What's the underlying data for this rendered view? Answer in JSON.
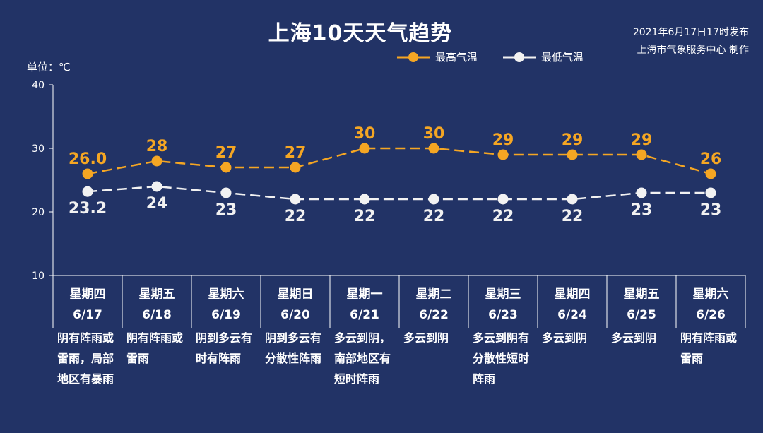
{
  "header": {
    "title": "上海10天天气趋势",
    "publish_time": "2021年6月17日17时发布",
    "publisher": "上海市气象服务中心 制作"
  },
  "unit_label": "单位：℃",
  "colors": {
    "background": "#223366",
    "high": "#f5a623",
    "low": "#f2f2f2"
  },
  "chart_data": {
    "type": "line",
    "ylim": [
      10,
      40
    ],
    "yticks": [
      10,
      20,
      30,
      40
    ],
    "legend_position": "top-center",
    "series": [
      {
        "name": "最高气温",
        "color": "#f5a623",
        "values": [
          26.0,
          28,
          27,
          27,
          30,
          30,
          29,
          29,
          29,
          26
        ],
        "labels": [
          "26.0",
          "28",
          "27",
          "27",
          "30",
          "30",
          "29",
          "29",
          "29",
          "26"
        ]
      },
      {
        "name": "最低气温",
        "color": "#f2f2f2",
        "values": [
          23.2,
          24,
          23,
          22,
          22,
          22,
          22,
          22,
          23,
          23
        ],
        "labels": [
          "23.2",
          "24",
          "23",
          "22",
          "22",
          "22",
          "22",
          "22",
          "23",
          "23"
        ]
      }
    ],
    "days": [
      {
        "weekday": "星期四",
        "date": "6/17",
        "desc": "阴有阵雨或雷雨，局部地区有暴雨"
      },
      {
        "weekday": "星期五",
        "date": "6/18",
        "desc": "阴有阵雨或雷雨"
      },
      {
        "weekday": "星期六",
        "date": "6/19",
        "desc": "阴到多云有时有阵雨"
      },
      {
        "weekday": "星期日",
        "date": "6/20",
        "desc": "阴到多云有分散性阵雨"
      },
      {
        "weekday": "星期一",
        "date": "6/21",
        "desc": "多云到阴，南部地区有短时阵雨"
      },
      {
        "weekday": "星期二",
        "date": "6/22",
        "desc": "多云到阴"
      },
      {
        "weekday": "星期三",
        "date": "6/23",
        "desc": "多云到阴有分散性短时阵雨"
      },
      {
        "weekday": "星期四",
        "date": "6/24",
        "desc": "多云到阴"
      },
      {
        "weekday": "星期五",
        "date": "6/25",
        "desc": "多云到阴"
      },
      {
        "weekday": "星期六",
        "date": "6/26",
        "desc": "阴有阵雨或雷雨"
      }
    ]
  }
}
